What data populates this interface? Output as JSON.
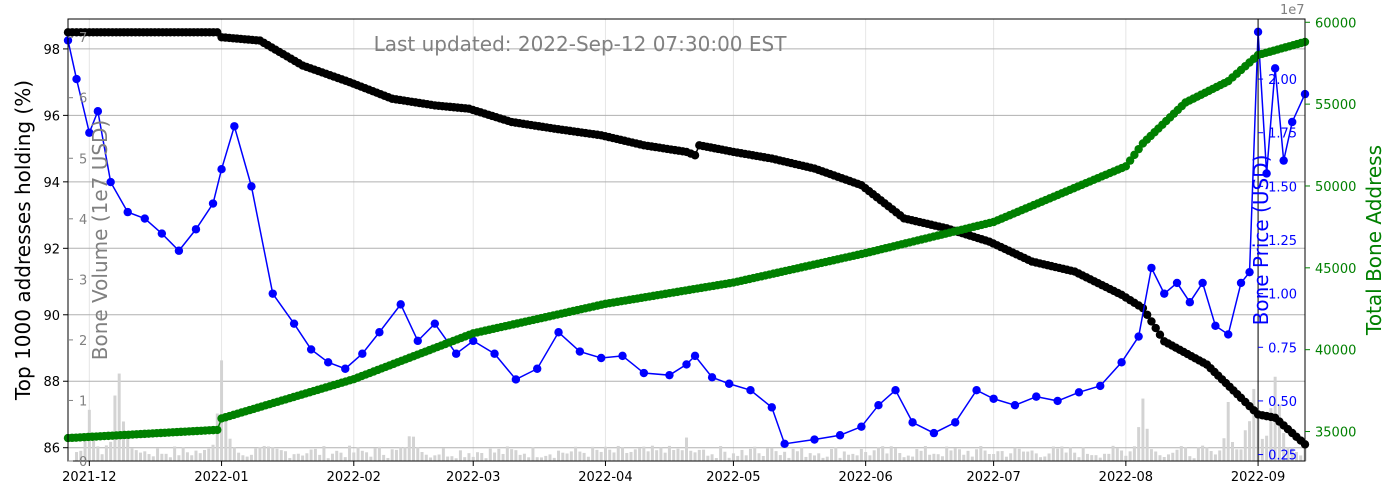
{
  "chart_data": {
    "type": "line",
    "title": "Last updated:  2022-Sep-12 07:30:00  EST",
    "x_tick_labels": [
      "2021-12",
      "2022-01",
      "2022-02",
      "2022-03",
      "2022-04",
      "2022-05",
      "2022-06",
      "2022-07",
      "2022-08",
      "2022-09"
    ],
    "x_range": [
      "2021-11-26",
      "2022-09-12"
    ],
    "axes": {
      "left": {
        "label": "Top 1000 addresses holding (%)",
        "ylim": [
          85.6,
          98.9
        ],
        "ticks": [
          86,
          88,
          90,
          92,
          94,
          96,
          98
        ],
        "tick_labels": [
          "86",
          "88",
          "90",
          "92",
          "94",
          "96",
          "98"
        ]
      },
      "volume": {
        "label": "Bone Volume (1e7 USD)",
        "ylim": [
          0,
          7.3
        ],
        "ticks": [
          0,
          1,
          2,
          3,
          4,
          5,
          6,
          7
        ],
        "tick_labels": [
          "0",
          "1",
          "2",
          "3",
          "4",
          "5",
          "6",
          "7"
        ]
      },
      "price": {
        "label": "Bone Price (USD)",
        "offset_label": "1e7",
        "ylim": [
          0.22,
          2.28
        ],
        "ticks": [
          0.25,
          0.5,
          0.75,
          1.0,
          1.25,
          1.5,
          1.75,
          2.0
        ],
        "tick_labels": [
          "0.25",
          "0.50",
          "0.75",
          "1.00",
          "1.25",
          "1.50",
          "1.75",
          "2.00"
        ]
      },
      "addresses": {
        "label": "Total Bone Address",
        "ylim": [
          33200,
          60200
        ],
        "ticks": [
          35000,
          40000,
          45000,
          50000,
          55000,
          60000
        ],
        "tick_labels": [
          "35000",
          "40000",
          "45000",
          "50000",
          "55000",
          "60000"
        ]
      }
    },
    "vertical_marker": "2022-09-01",
    "series": [
      {
        "name": "Top 1000 addresses holding (%)",
        "axis": "left",
        "color": "#000000",
        "marker": "circle",
        "x": [
          "2021-11-26",
          "2021-12-01",
          "2021-12-10",
          "2021-12-20",
          "2021-12-31",
          "2022-01-01",
          "2022-01-10",
          "2022-01-20",
          "2022-01-31",
          "2022-02-10",
          "2022-02-20",
          "2022-02-28",
          "2022-03-10",
          "2022-03-20",
          "2022-03-31",
          "2022-04-10",
          "2022-04-20",
          "2022-04-22",
          "2022-04-23",
          "2022-05-01",
          "2022-05-10",
          "2022-05-20",
          "2022-05-31",
          "2022-06-10",
          "2022-06-20",
          "2022-06-30",
          "2022-07-10",
          "2022-07-20",
          "2022-07-31",
          "2022-08-05",
          "2022-08-10",
          "2022-08-20",
          "2022-08-28",
          "2022-09-01",
          "2022-09-05",
          "2022-09-12"
        ],
        "values": [
          98.5,
          98.5,
          98.5,
          98.5,
          98.5,
          98.35,
          98.25,
          97.5,
          97.0,
          96.5,
          96.3,
          96.2,
          95.8,
          95.6,
          95.4,
          95.1,
          94.9,
          94.8,
          95.1,
          94.9,
          94.7,
          94.4,
          93.9,
          92.9,
          92.6,
          92.2,
          91.6,
          91.3,
          90.6,
          90.2,
          89.2,
          88.5,
          87.5,
          87.0,
          86.9,
          86.1
        ]
      },
      {
        "name": "Bone Price (USD)",
        "axis": "price",
        "color": "#0000ff",
        "marker": "circle",
        "x": [
          "2021-11-26",
          "2021-11-28",
          "2021-12-01",
          "2021-12-03",
          "2021-12-06",
          "2021-12-10",
          "2021-12-14",
          "2021-12-18",
          "2021-12-22",
          "2021-12-26",
          "2021-12-30",
          "2022-01-01",
          "2022-01-04",
          "2022-01-08",
          "2022-01-13",
          "2022-01-18",
          "2022-01-22",
          "2022-01-26",
          "2022-01-30",
          "2022-02-03",
          "2022-02-07",
          "2022-02-12",
          "2022-02-16",
          "2022-02-20",
          "2022-02-25",
          "2022-03-01",
          "2022-03-06",
          "2022-03-11",
          "2022-03-16",
          "2022-03-21",
          "2022-03-26",
          "2022-03-31",
          "2022-04-05",
          "2022-04-10",
          "2022-04-16",
          "2022-04-20",
          "2022-04-22",
          "2022-04-26",
          "2022-04-30",
          "2022-05-05",
          "2022-05-10",
          "2022-05-13",
          "2022-05-20",
          "2022-05-26",
          "2022-05-31",
          "2022-06-04",
          "2022-06-08",
          "2022-06-12",
          "2022-06-17",
          "2022-06-22",
          "2022-06-27",
          "2022-07-01",
          "2022-07-06",
          "2022-07-11",
          "2022-07-16",
          "2022-07-21",
          "2022-07-26",
          "2022-07-31",
          "2022-08-04",
          "2022-08-07",
          "2022-08-10",
          "2022-08-13",
          "2022-08-16",
          "2022-08-19",
          "2022-08-22",
          "2022-08-25",
          "2022-08-28",
          "2022-08-30",
          "2022-09-01",
          "2022-09-03",
          "2022-09-05",
          "2022-09-07",
          "2022-09-09",
          "2022-09-12"
        ],
        "values": [
          2.18,
          2.0,
          1.75,
          1.85,
          1.52,
          1.38,
          1.35,
          1.28,
          1.2,
          1.3,
          1.42,
          1.58,
          1.78,
          1.5,
          1.0,
          0.86,
          0.74,
          0.68,
          0.65,
          0.72,
          0.82,
          0.95,
          0.78,
          0.86,
          0.72,
          0.78,
          0.72,
          0.6,
          0.65,
          0.82,
          0.73,
          0.7,
          0.71,
          0.63,
          0.62,
          0.67,
          0.71,
          0.61,
          0.58,
          0.55,
          0.47,
          0.3,
          0.32,
          0.34,
          0.38,
          0.48,
          0.55,
          0.4,
          0.35,
          0.4,
          0.55,
          0.51,
          0.48,
          0.52,
          0.5,
          0.54,
          0.57,
          0.68,
          0.8,
          1.12,
          1.0,
          1.05,
          0.96,
          1.05,
          0.85,
          0.81,
          1.05,
          1.1,
          2.22,
          1.56,
          2.05,
          1.62,
          1.8,
          1.93
        ]
      },
      {
        "name": "Total Bone Address",
        "axis": "addresses",
        "color": "#008000",
        "marker": "circle",
        "x": [
          "2021-11-26",
          "2021-12-31",
          "2022-01-01",
          "2022-02-01",
          "2022-03-01",
          "2022-04-01",
          "2022-05-01",
          "2022-06-01",
          "2022-07-01",
          "2022-08-01",
          "2022-08-05",
          "2022-08-15",
          "2022-08-25",
          "2022-09-01",
          "2022-09-12"
        ],
        "values": [
          34600,
          35100,
          35800,
          38200,
          41000,
          42800,
          44100,
          45900,
          47800,
          51200,
          52600,
          55100,
          56400,
          58000,
          58800
        ]
      }
    ],
    "volume_bars": {
      "name": "Bone Volume (1e7 USD)",
      "axis": "volume",
      "color": "#d3d3d3",
      "x_range": [
        "2021-11-28",
        "2022-09-12"
      ],
      "baseline": 0.15,
      "peaks": [
        {
          "x": "2021-12-01",
          "value": 0.9
        },
        {
          "x": "2021-12-08",
          "value": 2.0
        },
        {
          "x": "2022-01-01",
          "value": 1.7
        },
        {
          "x": "2022-02-14",
          "value": 0.8
        },
        {
          "x": "2022-04-20",
          "value": 0.45
        },
        {
          "x": "2022-05-10",
          "value": 0.4
        },
        {
          "x": "2022-08-05",
          "value": 1.3
        },
        {
          "x": "2022-08-25",
          "value": 1.0
        },
        {
          "x": "2022-08-31",
          "value": 2.2
        },
        {
          "x": "2022-09-05",
          "value": 1.9
        }
      ]
    }
  }
}
